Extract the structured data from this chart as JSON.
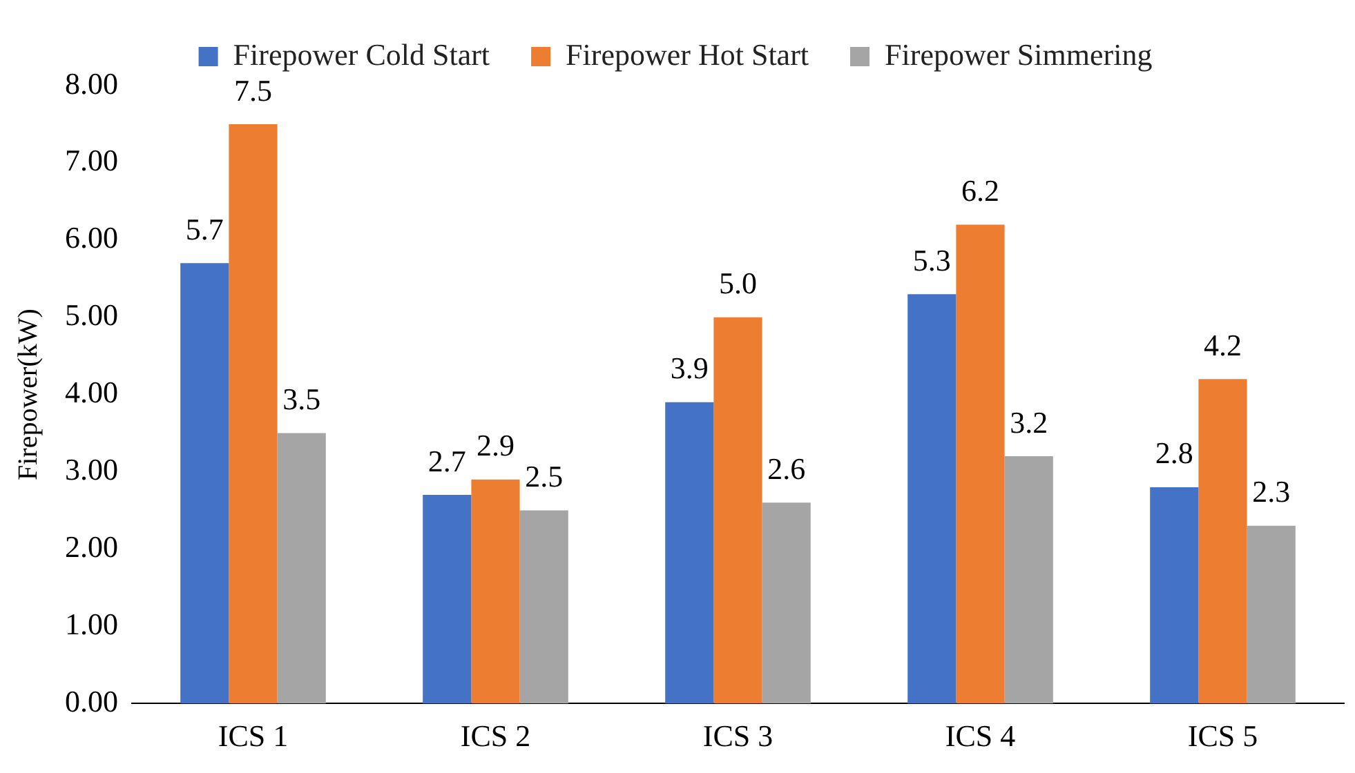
{
  "chart_data": {
    "type": "bar",
    "ylabel": "Firepower(kW)",
    "categories": [
      "ICS 1",
      "ICS 2",
      "ICS 3",
      "ICS 4",
      "ICS 5"
    ],
    "series": [
      {
        "name": "Firepower Cold Start",
        "color": "#4472c4",
        "values": [
          5.7,
          2.7,
          3.9,
          5.3,
          2.8
        ],
        "value_labels": [
          "5.7",
          "2.7",
          "3.9",
          "5.3",
          "2.8"
        ]
      },
      {
        "name": "Firepower Hot Start",
        "color": "#ed7d31",
        "values": [
          7.5,
          2.9,
          5.0,
          6.2,
          4.2
        ],
        "value_labels": [
          "7.5",
          "2.9",
          "5.0",
          "6.2",
          "4.2"
        ]
      },
      {
        "name": "Firepower Simmering",
        "color": "#a5a5a5",
        "values": [
          3.5,
          2.5,
          2.6,
          3.2,
          2.3
        ],
        "value_labels": [
          "3.5",
          "2.5",
          "2.6",
          "3.2",
          "2.3"
        ]
      }
    ],
    "ylim": [
      0,
      8
    ],
    "yticks": [
      {
        "value": 0,
        "label": "0.00"
      },
      {
        "value": 1,
        "label": "1.00"
      },
      {
        "value": 2,
        "label": "2.00"
      },
      {
        "value": 3,
        "label": "3.00"
      },
      {
        "value": 4,
        "label": "4.00"
      },
      {
        "value": 5,
        "label": "5.00"
      },
      {
        "value": 6,
        "label": "6.00"
      },
      {
        "value": 7,
        "label": "7.00"
      },
      {
        "value": 8,
        "label": "8.00"
      }
    ],
    "grid": false,
    "legend": "top"
  }
}
